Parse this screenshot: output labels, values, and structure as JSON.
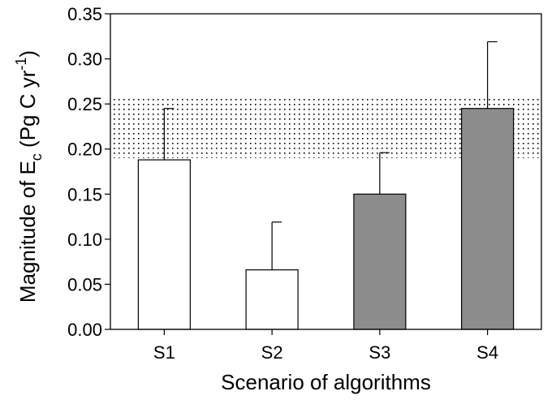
{
  "chart_data": {
    "type": "bar",
    "title": "",
    "xlabel": "Scenario of algorithms",
    "ylabel": {
      "prefix": "Magnitude of E",
      "subscript": "c",
      "unit_open": " (Pg C yr",
      "superscript": "-1",
      "unit_close": ")"
    },
    "categories": [
      "S1",
      "S2",
      "S3",
      "S4"
    ],
    "values": [
      0.188,
      0.066,
      0.15,
      0.245
    ],
    "error_upper": [
      0.245,
      0.119,
      0.196,
      0.319
    ],
    "bar_colors": [
      "#ffffff",
      "#ffffff",
      "#8c8c8c",
      "#8c8c8c"
    ],
    "ylim": [
      0,
      0.35
    ],
    "yticks": [
      "0.00",
      "0.05",
      "0.10",
      "0.15",
      "0.20",
      "0.25",
      "0.30",
      "0.35"
    ],
    "band": {
      "low": 0.19,
      "high": 0.258,
      "pattern": "dotted"
    },
    "grid": false,
    "legend": "none"
  }
}
